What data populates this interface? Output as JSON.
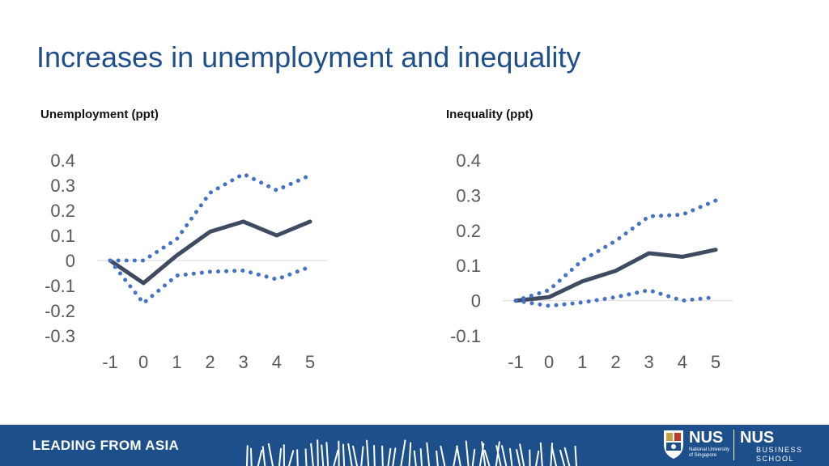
{
  "page": {
    "title": "Increases in unemployment and inequality"
  },
  "chart_data": [
    {
      "type": "line",
      "title": "Unemployment (ppt)",
      "x": [
        -1,
        0,
        1,
        2,
        3,
        4,
        5
      ],
      "ylim": [
        -0.3,
        0.4
      ],
      "yticks": [
        "0.4",
        "0.3",
        "0.2",
        "0.1",
        "0",
        "-0.1",
        "-0.2",
        "-0.3"
      ],
      "xticks": [
        "-1",
        "0",
        "1",
        "2",
        "3",
        "4",
        "5"
      ],
      "grid": false,
      "series": [
        {
          "style": "solid",
          "values": [
            0,
            -0.09,
            0.02,
            0.115,
            0.155,
            0.1,
            0.155
          ]
        },
        {
          "style": "dotted",
          "values": [
            0,
            0,
            0.085,
            0.27,
            0.345,
            0.28,
            0.34
          ]
        },
        {
          "style": "dotted",
          "values": [
            0,
            -0.17,
            -0.06,
            -0.045,
            -0.04,
            -0.075,
            -0.025
          ]
        }
      ]
    },
    {
      "type": "line",
      "title": "Inequality (ppt)",
      "x": [
        -1,
        0,
        1,
        2,
        3,
        4,
        5
      ],
      "ylim": [
        -0.1,
        0.4
      ],
      "yticks": [
        "0.4",
        "0.3",
        "0.2",
        "0.1",
        "0",
        "-0.1"
      ],
      "xticks": [
        "-1",
        "0",
        "1",
        "2",
        "3",
        "4",
        "5"
      ],
      "grid": false,
      "series": [
        {
          "style": "solid",
          "values": [
            0,
            0.01,
            0.055,
            0.085,
            0.135,
            0.125,
            0.145
          ]
        },
        {
          "style": "dotted",
          "values": [
            0,
            0.03,
            0.115,
            0.17,
            0.24,
            0.245,
            0.285
          ]
        },
        {
          "style": "dotted",
          "values": [
            0,
            -0.015,
            -0.005,
            0.01,
            0.03,
            0,
            0.01
          ]
        }
      ]
    }
  ],
  "colors": {
    "title": "#1f4e8c",
    "solid_line": "#3e4b61",
    "dotted_line": "#4472c4",
    "axis_text": "#595959",
    "zero_line": "#d9d9d9",
    "footer_bg": "#1d4f8b"
  },
  "footer": {
    "tagline": "LEADING FROM ASIA",
    "nus_name": "NUS",
    "nus_subtitle_1": "National University",
    "nus_subtitle_2": "of Singapore",
    "school_name": "NUS",
    "school_sub_1": "BUSINESS",
    "school_sub_2": "SCHOOL"
  },
  "icons": [
    "grass-decoration-icon",
    "nus-crest-icon"
  ]
}
